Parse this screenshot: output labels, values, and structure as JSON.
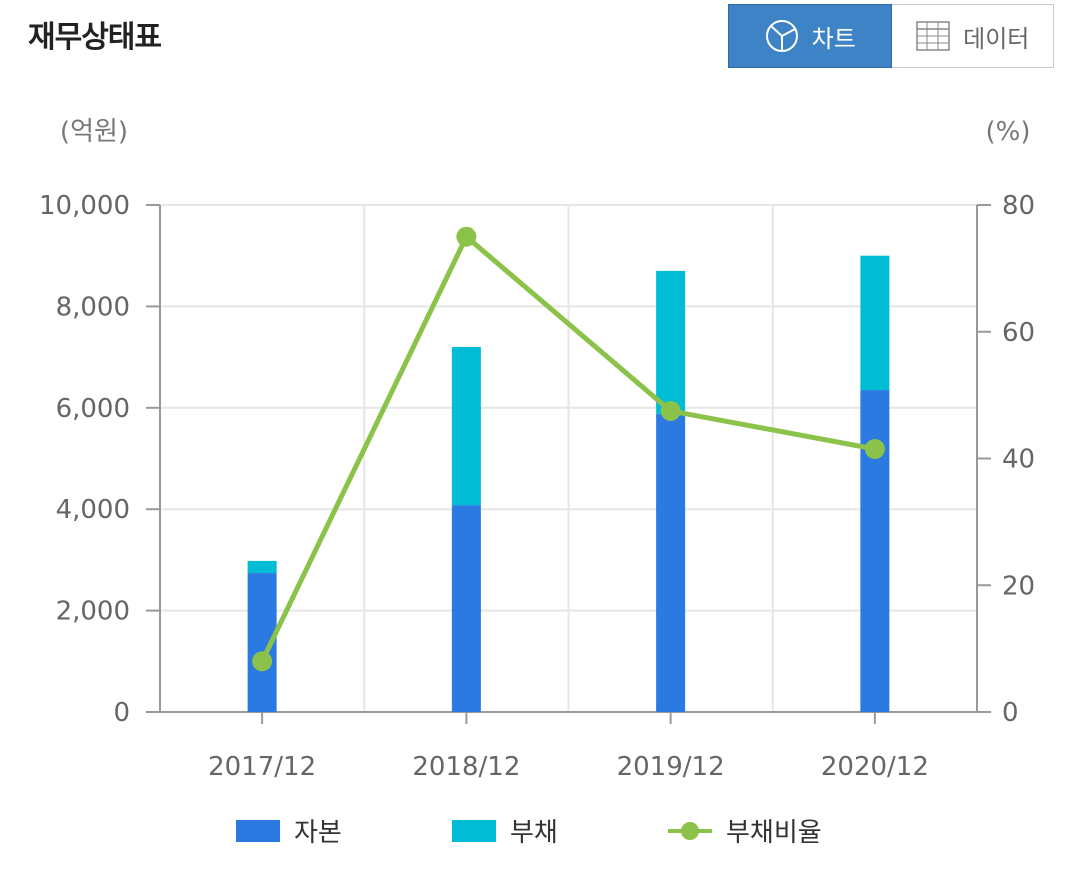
{
  "header": {
    "title": "재무상태표",
    "chart_tab_label": "차트",
    "data_tab_label": "데이터",
    "chart_tab_icon": "pie-chart-icon",
    "data_tab_icon": "table-grid-icon",
    "active_tab": "chart"
  },
  "colors": {
    "equity": "#2a7ae2",
    "liabilities": "#00bcd4",
    "ratio": "#8bc34a",
    "active_tab": "#3e83c5"
  },
  "chart_data": {
    "type": "bar",
    "stacked": true,
    "categories": [
      "2017/12",
      "2018/12",
      "2019/12",
      "2020/12"
    ],
    "y_left_unit": "(억원)",
    "y_right_unit": "(%)",
    "y_left_ticks": [
      "0",
      "2,000",
      "4,000",
      "6,000",
      "8,000",
      "10,000"
    ],
    "y_right_ticks": [
      "0",
      "20",
      "40",
      "60",
      "80"
    ],
    "ylim_left": [
      0,
      10000
    ],
    "ylim_right": [
      0,
      80
    ],
    "grid": true,
    "legend_position": "bottom",
    "series": [
      {
        "name": "자본",
        "type": "bar",
        "axis": "left",
        "values": [
          2740,
          4080,
          5880,
          6350
        ]
      },
      {
        "name": "부채",
        "type": "bar",
        "axis": "left",
        "values": [
          240,
          3120,
          2820,
          2650
        ]
      },
      {
        "name": "부채비율",
        "type": "line",
        "axis": "right",
        "values": [
          8,
          75,
          47.5,
          41.5
        ]
      }
    ]
  }
}
